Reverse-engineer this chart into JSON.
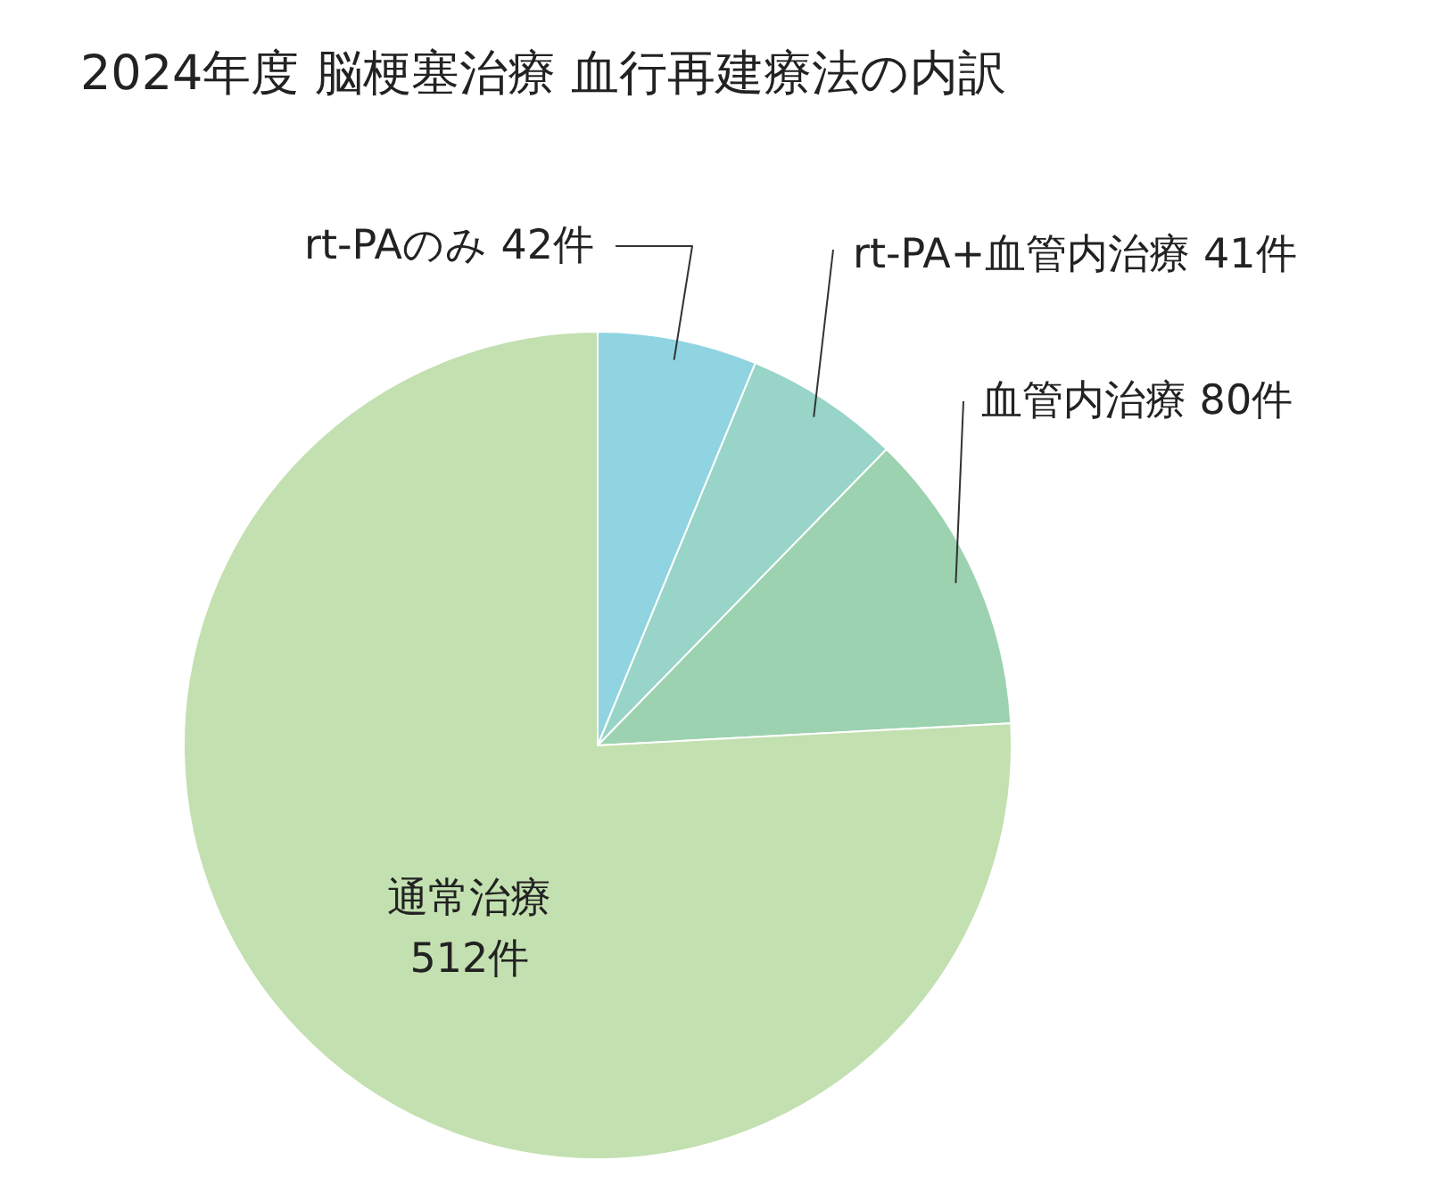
{
  "chart_data": {
    "type": "pie",
    "title": "2024年度 脳梗塞治療 血行再建療法の内訳",
    "categories": [
      "rt-PAのみ",
      "rt-PA+血管内治療",
      "血管内治療",
      "通常治療"
    ],
    "values": [
      42,
      41,
      80,
      512
    ],
    "value_labels": [
      "42件",
      "41件",
      "80件",
      "512件"
    ],
    "colors": [
      "#8fd4e0",
      "#98d4c8",
      "#9cd2b0",
      "#c3e0b0"
    ],
    "legend": false
  }
}
